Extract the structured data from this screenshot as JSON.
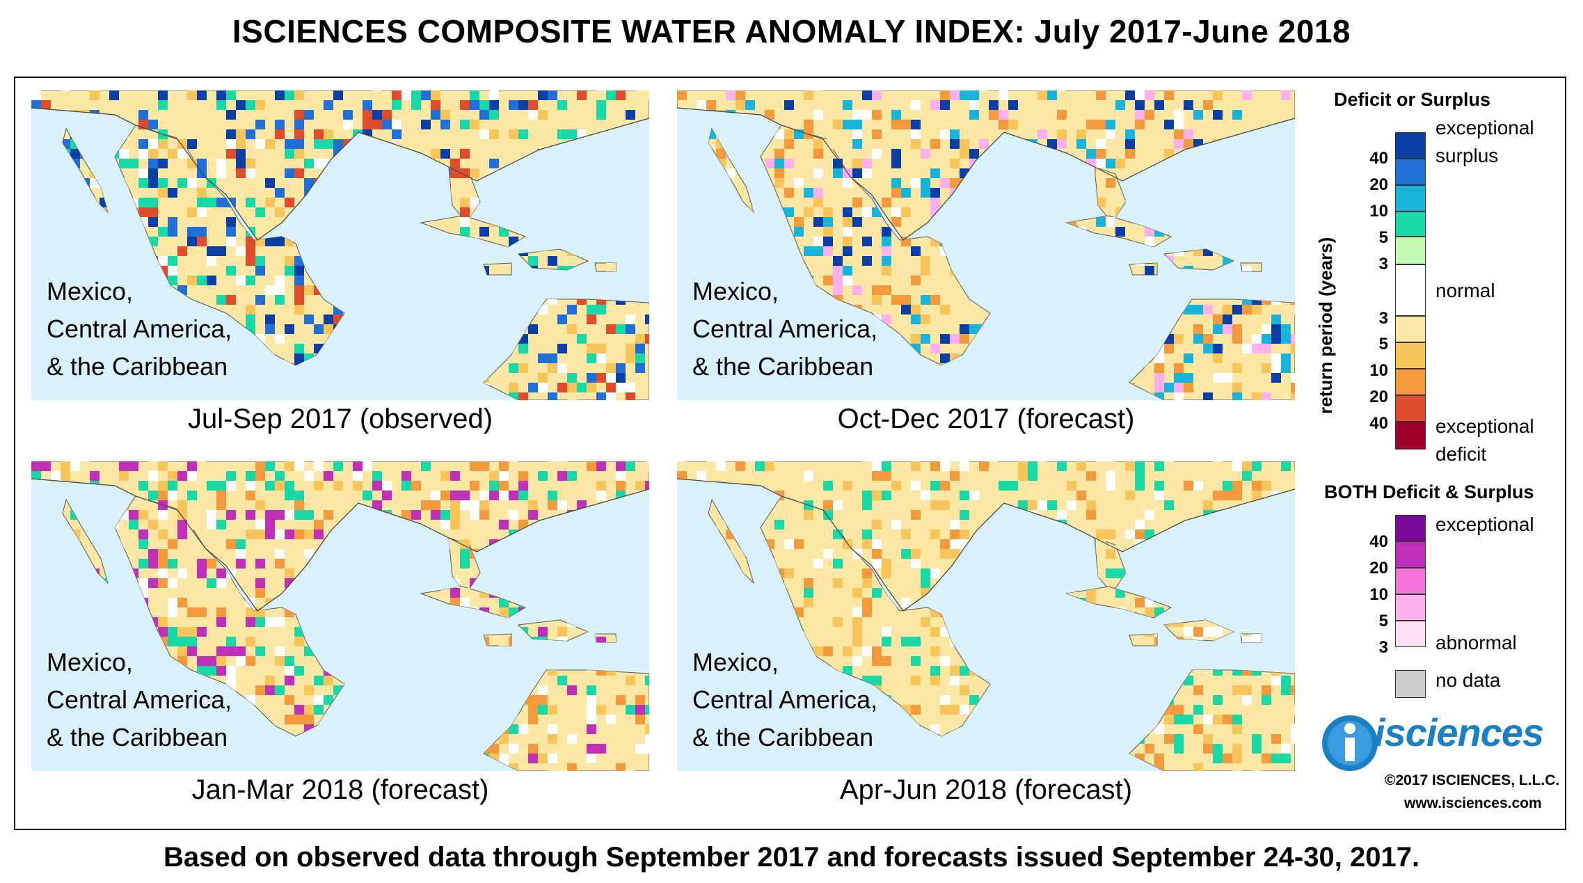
{
  "title": "ISCIENCES COMPOSITE WATER ANOMALY INDEX: July 2017-June 2018",
  "region_label_lines": [
    "Mexico,",
    "Central America,",
    "& the Caribbean"
  ],
  "panels": [
    {
      "caption": "Jul-Sep 2017 (observed)",
      "theme": "wet"
    },
    {
      "caption": "Oct-Dec 2017 (forecast)",
      "theme": "mixed"
    },
    {
      "caption": "Jan-Mar 2018 (forecast)",
      "theme": "dry"
    },
    {
      "caption": "Apr-Jun 2018 (forecast)",
      "theme": "dry2"
    }
  ],
  "legend": {
    "heading": "Deficit or Surplus",
    "axis_label": "return period (years)",
    "surplus_ticks": [
      "40",
      "20",
      "10",
      "5",
      "3"
    ],
    "deficit_ticks": [
      "3",
      "5",
      "10",
      "20",
      "40"
    ],
    "surplus_colors": [
      "#0a3fa6",
      "#1f6fd6",
      "#19b4d9",
      "#18d9a6",
      "#c4f7b0"
    ],
    "normal_color": "#ffffff",
    "deficit_colors": [
      "#fde7a4",
      "#f8c55b",
      "#f59a3c",
      "#df4c2b",
      "#a0002d"
    ],
    "exceptional_surplus": [
      "exceptional",
      "surplus"
    ],
    "normal_label": "normal",
    "exceptional_deficit": [
      "exceptional",
      "deficit"
    ],
    "both_heading": "BOTH Deficit & Surplus",
    "both_ticks": [
      "40",
      "20",
      "10",
      "5",
      "3"
    ],
    "both_colors": [
      "#7a0a99",
      "#c02fb8",
      "#f274d8",
      "#fcb0ec",
      "#fde0f4"
    ],
    "both_top_label": "exceptional",
    "both_bottom_label": "abnormal",
    "nodata_color": "#cccccc",
    "nodata_label": "no data"
  },
  "logo": {
    "text": "isciences",
    "copyright": "©2017 ISCIENCES, L.L.C.",
    "website": "www.isciences.com"
  },
  "footer": "Based on observed data through September 2017 and forecasts issued September 24-30, 2017.",
  "colors": {
    "water": "#d8f1fb",
    "land_normal": "#ffffff"
  }
}
